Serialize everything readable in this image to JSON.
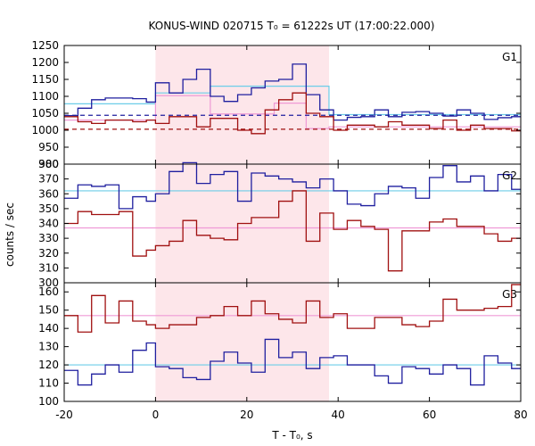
{
  "chart_data": {
    "type": "line",
    "title": "KONUS-WIND 020715 T₀ = 61222s UT (17:00:22.000)",
    "xlabel": "T - T₀, s",
    "ylabel": "counts / sec",
    "xlim": [
      -20,
      80
    ],
    "xticks": [
      -20,
      0,
      20,
      40,
      60,
      80
    ],
    "shaded_interval": [
      0,
      38
    ],
    "colors": {
      "blue": "#1f1f9f",
      "red": "#a01010",
      "cyan": "#6ccde8",
      "pink": "#ef9ad6",
      "shade": "#fde6ea"
    },
    "bin_edges": [
      -20,
      -17,
      -14,
      -11,
      -8,
      -5,
      -2,
      0,
      3,
      6,
      9,
      12,
      15,
      18,
      21,
      24,
      27,
      30,
      33,
      36,
      39,
      42,
      45,
      48,
      51,
      54,
      57,
      60,
      63,
      66,
      69,
      72,
      75,
      78,
      80
    ],
    "panels": [
      {
        "label": "G1",
        "ylim": [
          900,
          1250
        ],
        "yticks": [
          900,
          950,
          1000,
          1050,
          1100,
          1150,
          1200,
          1250
        ],
        "series": [
          {
            "color": "blue",
            "values": [
              1043,
              1065,
              1090,
              1095,
              1095,
              1093,
              1083,
              1140,
              1110,
              1150,
              1180,
              1100,
              1085,
              1105,
              1125,
              1145,
              1150,
              1195,
              1105,
              1060,
              1030,
              1038,
              1040,
              1060,
              1040,
              1053,
              1055,
              1050,
              1042,
              1060,
              1050,
              1032,
              1037,
              1040
            ]
          },
          {
            "color": "red",
            "values": [
              1040,
              1025,
              1020,
              1030,
              1030,
              1025,
              1030,
              1020,
              1040,
              1040,
              1010,
              1035,
              1035,
              1000,
              990,
              1060,
              1090,
              1110,
              1050,
              1040,
              1000,
              1015,
              1015,
              1010,
              1025,
              1015,
              1015,
              1005,
              1030,
              1000,
              1015,
              1005,
              1005,
              998
            ]
          }
        ],
        "steps": [
          {
            "color": "cyan",
            "dash": false,
            "segments": [
              [
                -20,
                0,
                1078
              ],
              [
                0,
                12,
                1110
              ],
              [
                12,
                38,
                1130
              ],
              [
                38,
                80,
                1046
              ]
            ]
          },
          {
            "color": "pink",
            "dash": false,
            "segments": [
              [
                -20,
                0,
                1030
              ],
              [
                0,
                12,
                1102
              ],
              [
                12,
                26,
                1048
              ],
              [
                26,
                33,
                1080
              ],
              [
                33,
                38,
                1005
              ],
              [
                38,
                80,
                1010
              ]
            ]
          },
          {
            "color": "blue",
            "dash": true,
            "segments": [
              [
                -20,
                80,
                1044
              ]
            ]
          },
          {
            "color": "red",
            "dash": true,
            "segments": [
              [
                -20,
                80,
                1003
              ]
            ]
          }
        ]
      },
      {
        "label": "G2",
        "ylim": [
          300,
          380
        ],
        "yticks": [
          300,
          310,
          320,
          330,
          340,
          350,
          360,
          370,
          380
        ],
        "series": [
          {
            "color": "blue",
            "values": [
              357,
              366,
              365,
              366,
              350,
              358,
              355,
              360,
              375,
              381,
              367,
              373,
              375,
              355,
              374,
              372,
              370,
              368,
              364,
              370,
              362,
              353,
              352,
              360,
              365,
              364,
              357,
              371,
              379,
              368,
              372,
              362,
              373,
              363
            ]
          },
          {
            "color": "red",
            "values": [
              340,
              348,
              346,
              346,
              348,
              318,
              322,
              325,
              328,
              342,
              332,
              330,
              329,
              340,
              344,
              344,
              355,
              362,
              328,
              347,
              336,
              342,
              338,
              336,
              308,
              335,
              335,
              341,
              343,
              338,
              338,
              333,
              328,
              330
            ]
          }
        ],
        "steps": [
          {
            "color": "cyan",
            "dash": false,
            "segments": [
              [
                -20,
                80,
                362
              ]
            ]
          },
          {
            "color": "pink",
            "dash": false,
            "segments": [
              [
                -20,
                80,
                337
              ]
            ]
          }
        ]
      },
      {
        "label": "G3",
        "ylim": [
          100,
          165
        ],
        "yticks": [
          100,
          110,
          120,
          130,
          140,
          150,
          160
        ],
        "series": [
          {
            "color": "blue",
            "values": [
              117,
              109,
              115,
              120,
              116,
              128,
              132,
              119,
              118,
              113,
              112,
              122,
              127,
              121,
              116,
              134,
              124,
              127,
              118,
              124,
              125,
              120,
              120,
              114,
              110,
              119,
              118,
              115,
              120,
              118,
              109,
              125,
              121,
              118
            ]
          },
          {
            "color": "red",
            "values": [
              147,
              138,
              158,
              143,
              155,
              144,
              142,
              140,
              142,
              142,
              146,
              147,
              152,
              147,
              155,
              148,
              145,
              143,
              155,
              146,
              148,
              140,
              140,
              146,
              146,
              142,
              141,
              144,
              156,
              150,
              150,
              151,
              152,
              164
            ]
          }
        ],
        "steps": [
          {
            "color": "cyan",
            "dash": false,
            "segments": [
              [
                -20,
                80,
                120
              ]
            ]
          },
          {
            "color": "pink",
            "dash": false,
            "segments": [
              [
                -20,
                80,
                147
              ]
            ]
          }
        ]
      }
    ]
  }
}
